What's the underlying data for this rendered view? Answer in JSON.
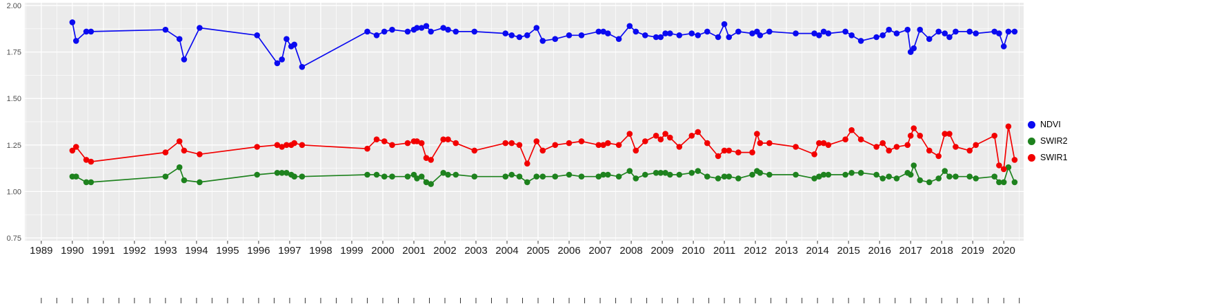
{
  "figure": {
    "background": "#ffffff",
    "panel_background": "#ebebeb",
    "grid_major_color": "#ffffff",
    "grid_minor_color": "#ffffff",
    "tick_color": "#333333",
    "x_label_color": "#1a1a1a",
    "y_label_color": "#4d4d4d"
  },
  "chart_data": {
    "type": "line",
    "title": "",
    "xlabel": "",
    "ylabel": "",
    "grid": true,
    "legend_position": "right",
    "xlim": [
      1988.47,
      2020.64
    ],
    "ylim": [
      0.735,
      2.015
    ],
    "x_ticks": [
      1989,
      1990,
      1991,
      1992,
      1993,
      1994,
      1995,
      1996,
      1997,
      1998,
      1999,
      2000,
      2001,
      2002,
      2003,
      2004,
      2005,
      2006,
      2007,
      2008,
      2009,
      2010,
      2011,
      2012,
      2013,
      2014,
      2015,
      2016,
      2017,
      2018,
      2019,
      2020
    ],
    "y_ticks": [
      2.0,
      1.75,
      1.5,
      1.25,
      1.0,
      0.75
    ],
    "y_tick_labels": [
      "2.00",
      "1.75",
      "1.50",
      "1.25",
      "1.00",
      "0.75"
    ],
    "x": [
      1990.0,
      1990.12,
      1990.45,
      1990.6,
      1993.0,
      1993.45,
      1993.6,
      1994.1,
      1995.95,
      1996.6,
      1996.75,
      1996.9,
      1997.05,
      1997.15,
      1997.4,
      1999.5,
      1999.8,
      2000.05,
      2000.3,
      2000.8,
      2001.0,
      2001.1,
      2001.25,
      2001.4,
      2001.55,
      2001.95,
      2002.1,
      2002.35,
      2002.95,
      2003.95,
      2004.15,
      2004.4,
      2004.65,
      2004.95,
      2005.15,
      2005.55,
      2006.0,
      2006.4,
      2006.95,
      2007.1,
      2007.25,
      2007.6,
      2007.95,
      2008.15,
      2008.45,
      2008.8,
      2008.95,
      2009.1,
      2009.25,
      2009.55,
      2009.95,
      2010.15,
      2010.45,
      2010.8,
      2011.0,
      2011.15,
      2011.45,
      2011.9,
      2012.05,
      2012.15,
      2012.45,
      2013.3,
      2013.9,
      2014.05,
      2014.2,
      2014.35,
      2014.9,
      2015.1,
      2015.4,
      2015.9,
      2016.1,
      2016.3,
      2016.55,
      2016.9,
      2017.0,
      2017.1,
      2017.3,
      2017.6,
      2017.9,
      2018.1,
      2018.25,
      2018.45,
      2018.9,
      2019.1,
      2019.7,
      2019.85,
      2020.0,
      2020.15,
      2020.35
    ],
    "series": [
      {
        "name": "NDVI",
        "color": "#0a0af0",
        "values": [
          1.91,
          1.81,
          1.86,
          1.86,
          1.87,
          1.82,
          1.71,
          1.88,
          1.84,
          1.69,
          1.71,
          1.82,
          1.78,
          1.79,
          1.67,
          1.86,
          1.84,
          1.86,
          1.87,
          1.86,
          1.87,
          1.88,
          1.88,
          1.89,
          1.86,
          1.88,
          1.87,
          1.86,
          1.86,
          1.85,
          1.84,
          1.83,
          1.84,
          1.88,
          1.81,
          1.82,
          1.84,
          1.84,
          1.86,
          1.86,
          1.85,
          1.82,
          1.89,
          1.86,
          1.84,
          1.83,
          1.83,
          1.85,
          1.85,
          1.84,
          1.85,
          1.84,
          1.86,
          1.83,
          1.9,
          1.83,
          1.86,
          1.85,
          1.86,
          1.84,
          1.86,
          1.85,
          1.85,
          1.84,
          1.86,
          1.85,
          1.86,
          1.84,
          1.81,
          1.83,
          1.84,
          1.87,
          1.85,
          1.87,
          1.75,
          1.77,
          1.87,
          1.82,
          1.86,
          1.85,
          1.83,
          1.86,
          1.86,
          1.85,
          1.86,
          1.85,
          1.78,
          1.86,
          1.86
        ]
      },
      {
        "name": "SWIR2",
        "color": "#1e821e",
        "values": [
          1.08,
          1.08,
          1.05,
          1.05,
          1.08,
          1.13,
          1.06,
          1.05,
          1.09,
          1.1,
          1.1,
          1.1,
          1.09,
          1.08,
          1.08,
          1.09,
          1.09,
          1.08,
          1.08,
          1.08,
          1.09,
          1.07,
          1.08,
          1.05,
          1.04,
          1.1,
          1.09,
          1.09,
          1.08,
          1.08,
          1.09,
          1.08,
          1.05,
          1.08,
          1.08,
          1.08,
          1.09,
          1.08,
          1.08,
          1.09,
          1.09,
          1.08,
          1.11,
          1.07,
          1.09,
          1.1,
          1.1,
          1.1,
          1.09,
          1.09,
          1.1,
          1.11,
          1.08,
          1.07,
          1.08,
          1.08,
          1.07,
          1.09,
          1.11,
          1.1,
          1.09,
          1.09,
          1.07,
          1.08,
          1.09,
          1.09,
          1.09,
          1.1,
          1.1,
          1.09,
          1.07,
          1.08,
          1.07,
          1.1,
          1.09,
          1.14,
          1.06,
          1.05,
          1.07,
          1.11,
          1.08,
          1.08,
          1.08,
          1.07,
          1.08,
          1.05,
          1.05,
          1.13,
          1.05
        ]
      },
      {
        "name": "SWIR1",
        "color": "#f20000",
        "values": [
          1.22,
          1.24,
          1.17,
          1.16,
          1.21,
          1.27,
          1.22,
          1.2,
          1.24,
          1.25,
          1.24,
          1.25,
          1.25,
          1.26,
          1.25,
          1.23,
          1.28,
          1.27,
          1.25,
          1.26,
          1.27,
          1.27,
          1.26,
          1.18,
          1.17,
          1.28,
          1.28,
          1.26,
          1.22,
          1.26,
          1.26,
          1.25,
          1.15,
          1.27,
          1.22,
          1.25,
          1.26,
          1.27,
          1.25,
          1.25,
          1.26,
          1.25,
          1.31,
          1.22,
          1.27,
          1.3,
          1.28,
          1.31,
          1.29,
          1.24,
          1.3,
          1.32,
          1.26,
          1.19,
          1.22,
          1.22,
          1.21,
          1.21,
          1.31,
          1.26,
          1.26,
          1.24,
          1.2,
          1.26,
          1.26,
          1.25,
          1.28,
          1.33,
          1.28,
          1.24,
          1.26,
          1.22,
          1.24,
          1.25,
          1.3,
          1.34,
          1.3,
          1.22,
          1.19,
          1.31,
          1.31,
          1.24,
          1.22,
          1.25,
          1.3,
          1.14,
          1.12,
          1.35,
          1.17
        ]
      }
    ]
  }
}
